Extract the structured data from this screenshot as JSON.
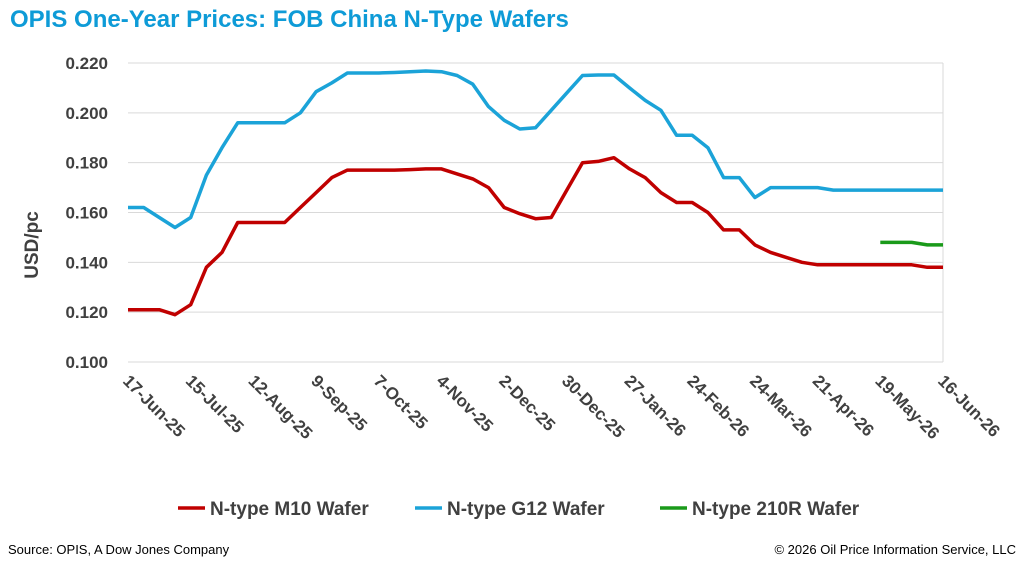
{
  "chart_data": {
    "type": "line",
    "title": "OPIS One-Year Prices: FOB China N-Type Wafers",
    "y_label": "USD/pc",
    "source": "Source: OPIS, A Dow Jones Company",
    "copyright": "© 2026 Oil Price Information Service, LLC",
    "categories": [
      "17-Jun-25",
      null,
      null,
      null,
      "15-Jul-25",
      null,
      null,
      null,
      "12-Aug-25",
      null,
      null,
      null,
      "9-Sep-25",
      null,
      null,
      null,
      "7-Oct-25",
      null,
      null,
      null,
      "4-Nov-25",
      null,
      null,
      null,
      "2-Dec-25",
      null,
      null,
      null,
      "30-Dec-25",
      null,
      null,
      null,
      "27-Jan-26",
      null,
      null,
      null,
      "24-Feb-26",
      null,
      null,
      null,
      "24-Mar-26",
      null,
      null,
      null,
      "21-Apr-26",
      null,
      null,
      null,
      "19-May-26",
      null,
      null,
      null,
      "16-Jun-26"
    ],
    "series": [
      {
        "name": "N-type M10 Wafer",
        "color": "#c00000",
        "values": [
          0.121,
          0.121,
          0.121,
          0.119,
          0.123,
          0.138,
          0.144,
          0.156,
          0.156,
          0.156,
          0.156,
          0.162,
          0.168,
          0.174,
          0.177,
          0.177,
          0.177,
          0.177,
          0.1772,
          0.1775,
          0.1775,
          0.1755,
          0.1735,
          0.17,
          0.162,
          0.1595,
          0.1575,
          0.158,
          0.169,
          0.18,
          0.1805,
          0.182,
          0.1775,
          0.174,
          0.168,
          0.164,
          0.164,
          0.16,
          0.153,
          0.153,
          0.147,
          0.144,
          0.142,
          0.14,
          0.139,
          0.139,
          0.139,
          0.139,
          0.139,
          0.139,
          0.139,
          0.138,
          0.138
        ]
      },
      {
        "name": "N-type G12 Wafer",
        "color": "#1ba3d8",
        "values": [
          0.162,
          0.162,
          0.158,
          0.154,
          0.158,
          0.175,
          0.186,
          0.196,
          0.196,
          0.196,
          0.196,
          0.2,
          0.2085,
          0.212,
          0.216,
          0.216,
          0.216,
          0.2162,
          0.2165,
          0.2168,
          0.2165,
          0.215,
          0.2115,
          0.2025,
          0.197,
          0.1935,
          0.194,
          0.201,
          0.208,
          0.215,
          0.2152,
          0.2152,
          0.21,
          0.205,
          0.201,
          0.191,
          0.191,
          0.186,
          0.174,
          0.174,
          0.166,
          0.17,
          0.17,
          0.17,
          0.17,
          0.169,
          0.169,
          0.169,
          0.169,
          0.169,
          0.169,
          0.169,
          0.169
        ]
      },
      {
        "name": "N-type 210R Wafer",
        "color": "#1a9a1a",
        "values": [
          null,
          null,
          null,
          null,
          null,
          null,
          null,
          null,
          null,
          null,
          null,
          null,
          null,
          null,
          null,
          null,
          null,
          null,
          null,
          null,
          null,
          null,
          null,
          null,
          null,
          null,
          null,
          null,
          null,
          null,
          null,
          null,
          null,
          null,
          null,
          null,
          null,
          null,
          null,
          null,
          null,
          null,
          null,
          null,
          null,
          null,
          null,
          null,
          0.148,
          0.148,
          0.148,
          0.147,
          0.147
        ]
      }
    ],
    "ylim": [
      0.1,
      0.22
    ],
    "yticks": [
      {
        "value": 0.1,
        "label": "0.100"
      },
      {
        "value": 0.12,
        "label": "0.120"
      },
      {
        "value": 0.14,
        "label": "0.140"
      },
      {
        "value": 0.16,
        "label": "0.160"
      },
      {
        "value": 0.18,
        "label": "0.180"
      },
      {
        "value": 0.2,
        "label": "0.200"
      },
      {
        "value": 0.22,
        "label": "0.220"
      }
    ],
    "grid": true,
    "legend": "bottom"
  }
}
